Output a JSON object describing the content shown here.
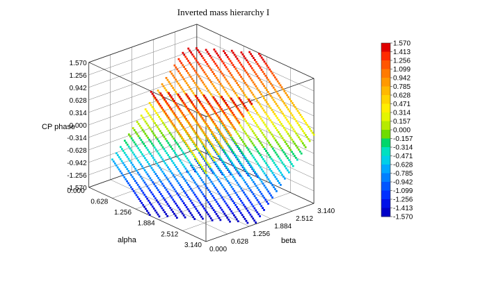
{
  "chart_data": {
    "type": "scatter3d",
    "title": "Inverted mass hierarchy I",
    "zlabel": "CP phase",
    "xlabel": "alpha",
    "ylabel": "beta",
    "z_ticks": [
      "1.570",
      "1.256",
      "0.942",
      "0.628",
      "0.314",
      "0.000",
      "-0.314",
      "-0.628",
      "-0.942",
      "-1.256",
      "-1.570"
    ],
    "alpha_ticks": [
      "0.000",
      "0.628",
      "1.256",
      "1.884",
      "2.512",
      "3.140"
    ],
    "beta_ticks": [
      "0.000",
      "0.628",
      "1.256",
      "1.884",
      "2.512",
      "3.140"
    ],
    "alpha_range": [
      0,
      3.14
    ],
    "beta_range": [
      0,
      3.14
    ],
    "z_range": [
      -1.57,
      1.57
    ],
    "colorbar_ticks": [
      "1.570",
      "1.413",
      "1.256",
      "1.099",
      "0.942",
      "0.785",
      "0.628",
      "0.471",
      "0.314",
      "0.157",
      "0.000",
      "-0.157",
      "-0.314",
      "-0.471",
      "-0.628",
      "-0.785",
      "-0.942",
      "-1.099",
      "-1.256",
      "-1.413",
      "-1.570"
    ],
    "colorbar_colors": [
      "#e00000",
      "#ff2a00",
      "#ff5500",
      "#ff7a00",
      "#ff9900",
      "#ffb800",
      "#ffd400",
      "#ffee00",
      "#e4f500",
      "#b6ea00",
      "#6fdc00",
      "#00d66a",
      "#00e0c0",
      "#00cfe8",
      "#00a8ff",
      "#0080ff",
      "#0056ff",
      "#0030ff",
      "#0010e8",
      "#0000c8"
    ],
    "surface_description": "CP phase ≈ wrap(beta - alpha), points along beta lines",
    "surface_points": [
      {
        "alpha": 0.63,
        "beta": 0.0,
        "cp": 0.0
      },
      {
        "alpha": 0.63,
        "beta": 3.14,
        "cp": 1.57
      },
      {
        "alpha": 3.14,
        "beta": 0.0,
        "cp": -1.57
      },
      {
        "alpha": 3.14,
        "beta": 3.14,
        "cp": 0.0
      }
    ]
  }
}
